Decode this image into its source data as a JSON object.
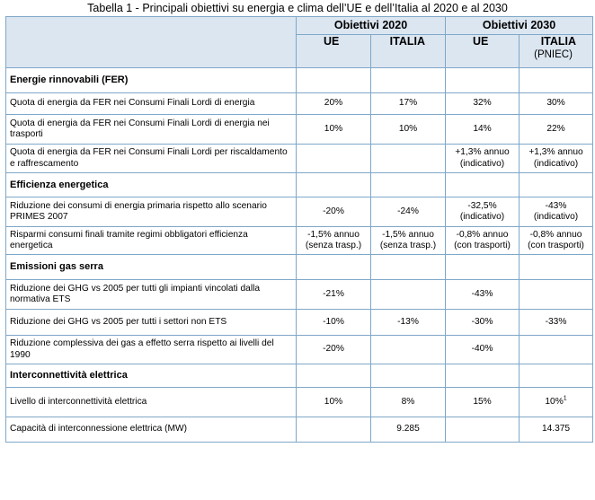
{
  "caption": "Tabella 1 - Principali obiettivi su energia e clima dell’UE e dell’Italia al 2020 e al 2030",
  "header": {
    "group_2020": "Obiettivi 2020",
    "group_2030": "Obiettivi 2030",
    "ue_2020": "UE",
    "italia_2020": "ITALIA",
    "ue_2030": "UE",
    "italia_2030": "ITALIA",
    "pniec": "(PNIEC)"
  },
  "sections": [
    {
      "title": "Energie rinnovabili (FER)",
      "rows": [
        {
          "label": "Quota di energia da FER nei Consumi Finali Lordi di energia",
          "ue2020": "20%",
          "it2020": "17%",
          "ue2030": "32%",
          "it2030": "30%"
        },
        {
          "label": "Quota di energia da FER nei Consumi Finali Lordi di energia nei trasporti",
          "ue2020": "10%",
          "it2020": "10%",
          "ue2030": "14%",
          "it2030": "22%"
        },
        {
          "label": "Quota di energia da FER nei Consumi Finali Lordi per riscaldamento e raffrescamento",
          "ue2020": "",
          "it2020": "",
          "ue2030": "+1,3% annuo (indicativo)",
          "it2030": "+1,3% annuo (indicativo)"
        }
      ]
    },
    {
      "title": "Efficienza energetica",
      "rows": [
        {
          "label": "Riduzione dei consumi di energia primaria rispetto allo scenario PRIMES 2007",
          "ue2020": "-20%",
          "it2020": "-24%",
          "ue2030": "-32,5% (indicativo)",
          "it2030": "-43% (indicativo)"
        },
        {
          "label": "Risparmi consumi finali tramite regimi obbligatori efficienza energetica",
          "ue2020": "-1,5% annuo (senza trasp.)",
          "it2020": "-1,5% annuo (senza trasp.)",
          "ue2030": "-0,8% annuo (con trasporti)",
          "it2030": "-0,8% annuo (con trasporti)"
        }
      ]
    },
    {
      "title": "Emissioni gas serra",
      "rows": [
        {
          "label": "Riduzione dei GHG vs 2005 per tutti gli impianti vincolati dalla normativa ETS",
          "ue2020": "-21%",
          "it2020": "",
          "ue2030": "-43%",
          "it2030": ""
        },
        {
          "label": "Riduzione dei GHG vs 2005 per tutti i settori non ETS",
          "ue2020": "-10%",
          "it2020": "-13%",
          "ue2030": "-30%",
          "it2030": "-33%"
        },
        {
          "label": "Riduzione complessiva dei gas a effetto serra rispetto ai livelli del 1990",
          "ue2020": "-20%",
          "it2020": "",
          "ue2030": "-40%",
          "it2030": ""
        }
      ]
    },
    {
      "title": "Interconnettività elettrica",
      "rows": [
        {
          "label": "Livello di interconnettività elettrica",
          "ue2020": "10%",
          "it2020": "8%",
          "ue2030": "15%",
          "it2030": "10%",
          "it2030_sup": "1"
        },
        {
          "label": "Capacità di interconnessione elettrica (MW)",
          "ue2020": "",
          "it2020": "9.285",
          "ue2030": "",
          "it2030": "14.375"
        }
      ]
    }
  ]
}
